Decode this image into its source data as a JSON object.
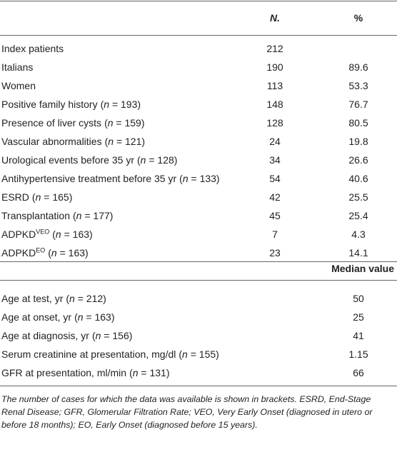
{
  "table": {
    "header": {
      "n": "N.",
      "pct": "%"
    },
    "rows": [
      {
        "label": "Index patients",
        "n": 212
      },
      {
        "label": "Italians",
        "n": 190,
        "pct": 89.6
      },
      {
        "label": "Women",
        "n": 113,
        "pct": 53.3
      },
      {
        "label": "Positive family history",
        "note": "(n = 193)",
        "n": 148,
        "pct": 76.7
      },
      {
        "label": "Presence of liver cysts",
        "note": "(n = 159)",
        "n": 128,
        "pct": 80.5
      },
      {
        "label": "Vascular abnormalities",
        "note": "(n = 121)",
        "n": 24,
        "pct": 19.8
      },
      {
        "label": "Urological events before 35 yr",
        "note": "(n = 128)",
        "n": 34,
        "pct": 26.6
      },
      {
        "label": "Antihypertensive treatment before 35 yr",
        "note": "(n = 133)",
        "n": 54,
        "pct": 40.6
      },
      {
        "label": "ESRD",
        "note": "(n = 165)",
        "n": 42,
        "pct": 25.5
      },
      {
        "label": "Transplantation",
        "note": "(n = 177)",
        "n": 45,
        "pct": 25.4
      },
      {
        "label": "ADPKD",
        "sup": "VEO",
        "note": "(n = 163)",
        "n": 7,
        "pct": 4.3
      },
      {
        "label": "ADPKD",
        "sup": "EO",
        "note": "(n = 163)",
        "n": 23,
        "pct": 14.1
      }
    ],
    "median_header": "Median value",
    "median_rows": [
      {
        "label": "Age at test, yr",
        "note": "(n = 212)",
        "value": 50
      },
      {
        "label": "Age at onset, yr",
        "note": "(n = 163)",
        "value": 25
      },
      {
        "label": "Age at diagnosis, yr",
        "note": "(n = 156)",
        "value": 41
      },
      {
        "label": "Serum creatinine at presentation, mg/dl",
        "note": "(n = 155)",
        "value": 1.15
      },
      {
        "label": "GFR at presentation, ml/min",
        "note": "(n = 131)",
        "value": 66
      }
    ]
  },
  "footnote": "The number of cases for which the data was available is shown in brackets. ESRD, End-Stage Renal Disease; GFR, Glomerular Filtration Rate; VEO, Very Early Onset (diagnosed in utero or before 18 months); EO, Early Onset (diagnosed before 15 years)."
}
